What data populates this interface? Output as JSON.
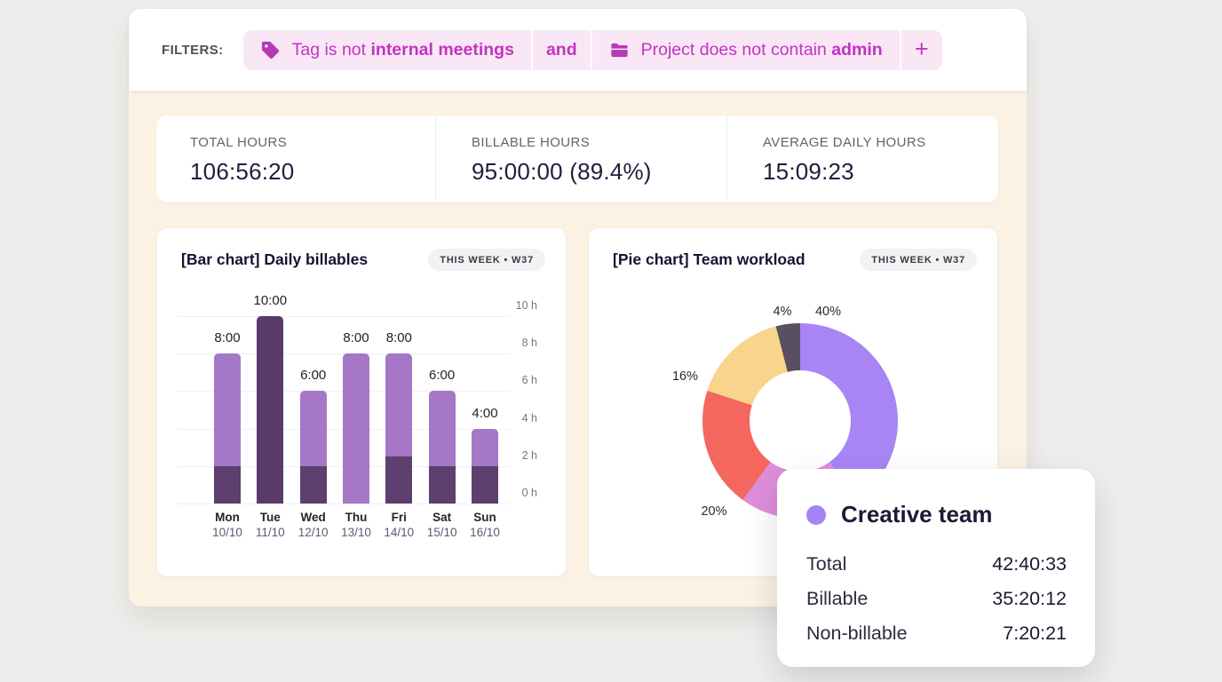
{
  "filters": {
    "label": "FILTERS:",
    "segments": [
      {
        "type": "chip",
        "icon": "tag-icon",
        "name": "filter-chip-tag",
        "text": "Tag is not",
        "value": "internal meetings"
      },
      {
        "type": "connector",
        "text": "and"
      },
      {
        "type": "chip",
        "icon": "folder-icon",
        "name": "filter-chip-project",
        "text": "Project does not contain",
        "value": "admin"
      },
      {
        "type": "add",
        "text": "+"
      }
    ]
  },
  "stats": [
    {
      "label": "TOTAL HOURS",
      "value": "106:56:20"
    },
    {
      "label": "BILLABLE HOURS",
      "value": "95:00:00 (89.4%)"
    },
    {
      "label": "AVERAGE DAILY HOURS",
      "value": "15:09:23"
    }
  ],
  "bar_card": {
    "title": "[Bar chart] Daily billables",
    "badge": "THIS WEEK • W37"
  },
  "pie_card": {
    "title": "[Pie chart] Team workload",
    "badge": "THIS WEEK • W37"
  },
  "chart_data": [
    {
      "type": "bar",
      "title": "[Bar chart] Daily billables",
      "period": "THIS WEEK • W37",
      "ylabel": "hours",
      "ylim": [
        0,
        10
      ],
      "yticks": [
        "0 h",
        "2 h",
        "4 h",
        "6 h",
        "8 h",
        "10 h"
      ],
      "yaxis_side": "right",
      "grid": true,
      "bars": [
        {
          "day": "Mon",
          "date": "10/10",
          "label": "8:00",
          "total_hours": 8,
          "dark_hours": 2
        },
        {
          "day": "Tue",
          "date": "11/10",
          "label": "10:00",
          "total_hours": 10,
          "dark_hours": 10,
          "highlighted": true
        },
        {
          "day": "Wed",
          "date": "12/10",
          "label": "6:00",
          "total_hours": 6,
          "dark_hours": 2
        },
        {
          "day": "Thu",
          "date": "13/10",
          "label": "8:00",
          "total_hours": 8,
          "dark_hours": 0
        },
        {
          "day": "Fri",
          "date": "14/10",
          "label": "8:00",
          "total_hours": 8,
          "dark_hours": 2.5
        },
        {
          "day": "Sat",
          "date": "15/10",
          "label": "6:00",
          "total_hours": 6,
          "dark_hours": 2
        },
        {
          "day": "Sun",
          "date": "16/10",
          "label": "4:00",
          "total_hours": 4,
          "dark_hours": 2
        }
      ]
    },
    {
      "type": "pie",
      "title": "[Pie chart] Team workload",
      "period": "THIS WEEK • W37",
      "donut": true,
      "start_angle_deg": 0,
      "direction": "clockwise",
      "slices": [
        {
          "name": "Creative team",
          "percent": 40,
          "label": "40%",
          "color": "#a884f4"
        },
        {
          "percent": 20,
          "label": "",
          "color": "#df8ed9"
        },
        {
          "percent": 20,
          "label": "20%",
          "color": "#f4675f"
        },
        {
          "percent": 16,
          "label": "16%",
          "color": "#f8d48c"
        },
        {
          "percent": 4,
          "label": "4%",
          "color": "#584f60"
        }
      ]
    }
  ],
  "tooltip": {
    "team": "Creative team",
    "dot_color": "#a584f5",
    "rows": [
      {
        "label": "Total",
        "value": "42:40:33"
      },
      {
        "label": "Billable",
        "value": "35:20:12"
      },
      {
        "label": "Non-billable",
        "value": "7:20:21"
      }
    ]
  },
  "colors": {
    "filter_text": "#c233c4",
    "filter_icon": "#b43ab6",
    "filter_chip_bg": "#f9e7f6",
    "bar_light": "#a478c7",
    "bar_dark": "#5d3f70",
    "bar_highlight": "#593a6b",
    "page_bg": "#efeeec",
    "panel_bg": "#fbf2e3"
  }
}
